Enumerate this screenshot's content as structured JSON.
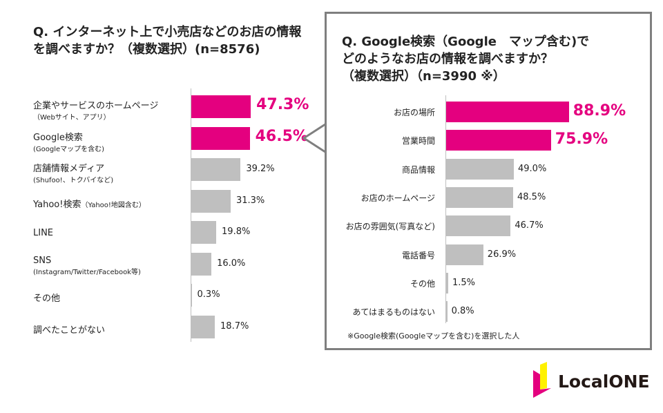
{
  "colors": {
    "highlight": "#e4007f",
    "normal": "#bfbfbf",
    "box_border": "#7f7f7f"
  },
  "chart_data": [
    {
      "type": "bar",
      "orientation": "horizontal",
      "title": "Q. インターネット上で小売店などのお店の情報を調べますか？（複数選択）(n=8576)",
      "title_lines": [
        "Q. インターネット上で小売店などのお店",
        "の情報を調べますか？（複数選択）",
        "(n=8576)"
      ],
      "categories": [
        {
          "label": "企業やサービスのホームページ",
          "sub": "（Webサイト、アプリ）"
        },
        {
          "label": "Google検索",
          "sub": "(Googleマップを含む)"
        },
        {
          "label": "店舗情報メディア",
          "sub": "(Shufoo!、トクバイなど)"
        },
        {
          "label": "Yahoo!検索",
          "inline_sub": "（Yahoo!地図含む）"
        },
        {
          "label": "LINE"
        },
        {
          "label": "SNS",
          "sub": "(Instagram/Twitter/Facebook等)"
        },
        {
          "label": "その他"
        },
        {
          "label": "調べたことがない"
        }
      ],
      "values": [
        47.3,
        46.5,
        39.2,
        31.3,
        19.8,
        16.0,
        0.3,
        18.7
      ],
      "value_labels": [
        "47.3%",
        "46.5%",
        "39.2%",
        "31.3%",
        "19.8%",
        "16.0%",
        "0.3%",
        "18.7%"
      ],
      "highlighted": [
        0,
        1
      ],
      "unit": "%"
    },
    {
      "type": "bar",
      "orientation": "horizontal",
      "title": "Q. Google検索（Google マップ含む)でどのようなお店の情報を調べますか？（複数選択）(n=3990 ※)",
      "title_lines": [
        "Q. Google検索（Google　マップ含む)で",
        "どのようなお店の情報を調べますか？",
        "（複数選択）（n=3990 ※）"
      ],
      "categories": [
        "お店の場所",
        "営業時間",
        "商品情報",
        "お店のホームページ",
        "お店の雰囲気(写真など)",
        "電話番号",
        "その他",
        "あてはまるものはない"
      ],
      "values": [
        88.9,
        75.9,
        49.0,
        48.5,
        46.7,
        26.9,
        1.5,
        0.8
      ],
      "value_labels": [
        "88.9%",
        "75.9%",
        "49.0%",
        "48.5%",
        "46.7%",
        "26.9%",
        "1.5%",
        "0.8%"
      ],
      "highlighted": [
        0,
        1
      ],
      "unit": "%",
      "footnote": "※Google検索(Googleマップを含む)を選択した人"
    }
  ],
  "logo": {
    "text": "LocalONE"
  }
}
